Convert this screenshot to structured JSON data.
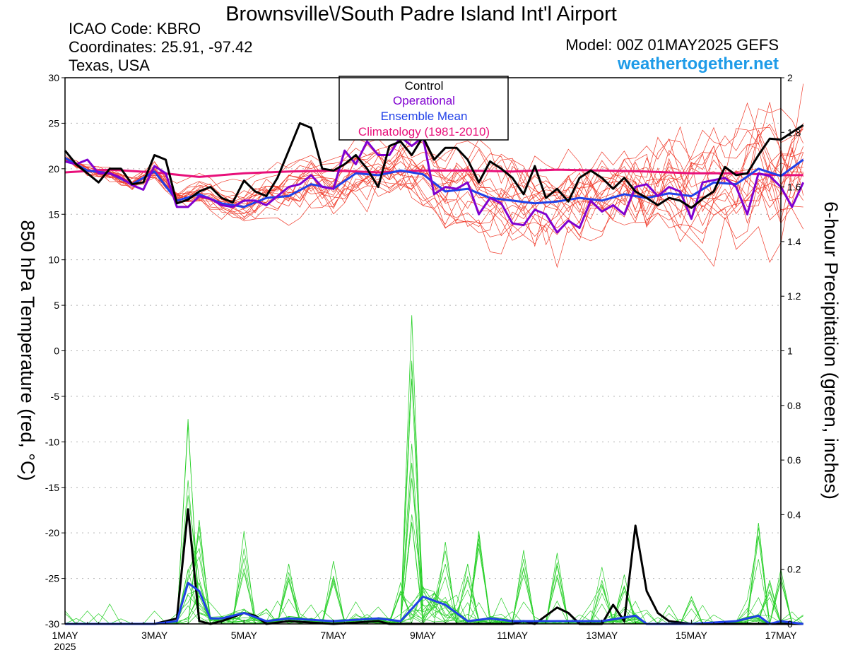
{
  "header": {
    "title": "Brownsville\\/South Padre Island Int'l Airport",
    "icao": "ICAO Code: KBRO",
    "coords": "Coordinates: 25.91, -97.42",
    "region": "Texas, USA",
    "model": "Model: 00Z 01MAY2025 GEFS",
    "site": "weathertogether.net"
  },
  "colors": {
    "control": "#000000",
    "operational": "#8000d0",
    "ensemble_mean": "#2040e8",
    "climatology": "#e8107a",
    "temp_members": "#f03a2a",
    "precip_members": "#2ad02a",
    "site": "#1e9be8"
  },
  "chart_data": {
    "type": "line",
    "ylabel": "850 hPa Temperature (red, °C)",
    "y2label": "6-hour Precipitation (green, inches)",
    "ylim": [
      -30,
      30
    ],
    "y2lim": [
      0,
      2
    ],
    "y_ticks": [
      30,
      25,
      20,
      15,
      10,
      5,
      0,
      -5,
      -10,
      -15,
      -20,
      -25,
      -30
    ],
    "y2_ticks": [
      2,
      1.8,
      1.6,
      1.4,
      1.2,
      1,
      0.8,
      0.6,
      0.4,
      0.2,
      0
    ],
    "xlim": [
      0,
      16
    ],
    "x_unit": "days since 1MAY 00Z",
    "x_ticks": [
      {
        "x": 0,
        "label": "1MAY",
        "sub": "2025"
      },
      {
        "x": 2,
        "label": "3MAY"
      },
      {
        "x": 4,
        "label": "5MAY"
      },
      {
        "x": 6,
        "label": "7MAY"
      },
      {
        "x": 8,
        "label": "9MAY"
      },
      {
        "x": 10,
        "label": "11MAY"
      },
      {
        "x": 12,
        "label": "13MAY"
      },
      {
        "x": 14,
        "label": "15MAY"
      },
      {
        "x": 16,
        "label": "17MAY"
      }
    ],
    "grid": "dotted horizontal",
    "legend": {
      "placement": "top-center",
      "entries": [
        {
          "label": "Control",
          "key": "control"
        },
        {
          "label": "Operational",
          "key": "operational"
        },
        {
          "label": "Ensemble Mean",
          "key": "ensemble_mean"
        },
        {
          "label": "Climatology (1981-2010)",
          "key": "climatology"
        }
      ]
    },
    "temp_control": [
      [
        0,
        22
      ],
      [
        0.25,
        20.5
      ],
      [
        0.5,
        19.5
      ],
      [
        0.75,
        18.5
      ],
      [
        1,
        20
      ],
      [
        1.25,
        20
      ],
      [
        1.5,
        18.3
      ],
      [
        1.75,
        18.5
      ],
      [
        2,
        21.5
      ],
      [
        2.25,
        21
      ],
      [
        2.5,
        16.2
      ],
      [
        2.75,
        16.6
      ],
      [
        3,
        17.5
      ],
      [
        3.25,
        18
      ],
      [
        3.5,
        16.8
      ],
      [
        3.75,
        16.3
      ],
      [
        4,
        18.7
      ],
      [
        4.25,
        17.5
      ],
      [
        4.5,
        17
      ],
      [
        4.75,
        19
      ],
      [
        5,
        22
      ],
      [
        5.25,
        25
      ],
      [
        5.5,
        24.5
      ],
      [
        5.75,
        20
      ],
      [
        6,
        19.8
      ],
      [
        6.25,
        20.5
      ],
      [
        6.5,
        21.5
      ],
      [
        6.75,
        20
      ],
      [
        7,
        18
      ],
      [
        7.25,
        22.5
      ],
      [
        7.5,
        23
      ],
      [
        7.75,
        21.5
      ],
      [
        8,
        23.5
      ],
      [
        8.25,
        21
      ],
      [
        8.5,
        22.3
      ],
      [
        8.75,
        22.3
      ],
      [
        9,
        21
      ],
      [
        9.25,
        18.5
      ],
      [
        9.5,
        20.8
      ],
      [
        9.75,
        20
      ],
      [
        10,
        19
      ],
      [
        10.25,
        17.2
      ],
      [
        10.5,
        20.3
      ],
      [
        10.75,
        16.8
      ],
      [
        11,
        17.8
      ],
      [
        11.25,
        16.4
      ],
      [
        11.5,
        19
      ],
      [
        11.75,
        19.8
      ],
      [
        12,
        19
      ],
      [
        12.25,
        17.8
      ],
      [
        12.5,
        19
      ],
      [
        12.75,
        17.5
      ],
      [
        13,
        16.8
      ],
      [
        13.25,
        16
      ],
      [
        13.5,
        16.8
      ],
      [
        13.75,
        16.5
      ],
      [
        14,
        15.7
      ],
      [
        14.25,
        16.7
      ],
      [
        14.5,
        17.5
      ],
      [
        14.75,
        20.2
      ],
      [
        15,
        19.3
      ],
      [
        15.25,
        19.5
      ],
      [
        15.5,
        21.5
      ],
      [
        15.75,
        23.3
      ],
      [
        16,
        23.2
      ],
      [
        16.25,
        24
      ],
      [
        16.5,
        24.8
      ]
    ],
    "temp_operational": [
      [
        0,
        20.8
      ],
      [
        0.25,
        20.5
      ],
      [
        0.5,
        21
      ],
      [
        0.75,
        19.5
      ],
      [
        1,
        19.5
      ],
      [
        1.25,
        19
      ],
      [
        1.5,
        18.2
      ],
      [
        1.75,
        17.7
      ],
      [
        2,
        20.3
      ],
      [
        2.25,
        19.5
      ],
      [
        2.5,
        15.8
      ],
      [
        2.75,
        15.8
      ],
      [
        3,
        17
      ],
      [
        3.25,
        16.7
      ],
      [
        3.5,
        16
      ],
      [
        3.75,
        15.8
      ],
      [
        4,
        16.5
      ],
      [
        4.25,
        16.5
      ],
      [
        4.5,
        16
      ],
      [
        4.75,
        17
      ],
      [
        5,
        18
      ],
      [
        5.25,
        18.3
      ],
      [
        5.5,
        19.3
      ],
      [
        5.75,
        18
      ],
      [
        6,
        17.8
      ],
      [
        6.25,
        22
      ],
      [
        6.5,
        20.5
      ],
      [
        6.75,
        23
      ],
      [
        7,
        21.5
      ],
      [
        7.25,
        21.5
      ],
      [
        7.5,
        23.5
      ],
      [
        7.75,
        22.5
      ],
      [
        8,
        23.5
      ],
      [
        8.25,
        17.2
      ],
      [
        8.5,
        18
      ],
      [
        8.75,
        17.8
      ],
      [
        9,
        18.5
      ],
      [
        9.25,
        15
      ],
      [
        9.5,
        16.8
      ],
      [
        9.75,
        16.2
      ],
      [
        10,
        14
      ],
      [
        10.25,
        13.8
      ],
      [
        10.5,
        15.5
      ],
      [
        10.75,
        15
      ],
      [
        11,
        13
      ],
      [
        11.25,
        14.3
      ],
      [
        11.5,
        13.5
      ],
      [
        11.75,
        16.5
      ],
      [
        12,
        15.3
      ],
      [
        12.25,
        16
      ],
      [
        12.5,
        15
      ],
      [
        12.75,
        18
      ],
      [
        13,
        18.3
      ],
      [
        13.25,
        17
      ],
      [
        13.5,
        18
      ],
      [
        13.75,
        17.5
      ],
      [
        14,
        14.5
      ],
      [
        14.25,
        18.5
      ],
      [
        14.75,
        19
      ],
      [
        15,
        18
      ],
      [
        15.25,
        15
      ],
      [
        15.5,
        19.5
      ],
      [
        15.75,
        19.2
      ],
      [
        16,
        18
      ],
      [
        16.25,
        15.8
      ],
      [
        16.5,
        18.5
      ]
    ],
    "temp_ensemble_mean": [
      [
        0,
        21.2
      ],
      [
        0.5,
        19.8
      ],
      [
        1,
        19.5
      ],
      [
        1.5,
        18.3
      ],
      [
        2,
        19.7
      ],
      [
        2.5,
        16.5
      ],
      [
        3,
        17.2
      ],
      [
        3.5,
        16.2
      ],
      [
        4,
        15.8
      ],
      [
        4.5,
        16.8
      ],
      [
        5,
        17
      ],
      [
        5.5,
        18.3
      ],
      [
        6,
        17.8
      ],
      [
        6.5,
        19.5
      ],
      [
        7,
        19.3
      ],
      [
        7.5,
        19.8
      ],
      [
        8,
        19.4
      ],
      [
        8.5,
        17.5
      ],
      [
        9,
        17.8
      ],
      [
        9.5,
        16.8
      ],
      [
        10,
        16.5
      ],
      [
        10.5,
        16.2
      ],
      [
        11,
        16.4
      ],
      [
        11.5,
        16.8
      ],
      [
        12,
        16.5
      ],
      [
        12.5,
        17.2
      ],
      [
        13,
        16.8
      ],
      [
        13.5,
        17.3
      ],
      [
        14,
        17
      ],
      [
        14.5,
        18.5
      ],
      [
        15,
        18.3
      ],
      [
        15.5,
        20
      ],
      [
        16,
        19.2
      ],
      [
        16.5,
        21
      ]
    ],
    "temp_climatology": [
      [
        0,
        19.6
      ],
      [
        1,
        19.9
      ],
      [
        2,
        19.6
      ],
      [
        3,
        19.1
      ],
      [
        4,
        19.5
      ],
      [
        5,
        19.7
      ],
      [
        6,
        19.8
      ],
      [
        7,
        19.6
      ],
      [
        8,
        19.8
      ],
      [
        9,
        19.8
      ],
      [
        10,
        19.7
      ],
      [
        11,
        19.9
      ],
      [
        12,
        19.8
      ],
      [
        13,
        19.7
      ],
      [
        14,
        19.5
      ],
      [
        15,
        19.5
      ],
      [
        16,
        19.3
      ],
      [
        16.5,
        19.3
      ]
    ],
    "precip_control": [
      [
        0,
        0
      ],
      [
        1,
        0
      ],
      [
        2,
        0
      ],
      [
        2.5,
        0.02
      ],
      [
        2.75,
        0.42
      ],
      [
        3,
        0.01
      ],
      [
        3.25,
        0
      ],
      [
        3.5,
        0.01
      ],
      [
        4,
        0.04
      ],
      [
        4.25,
        0.03
      ],
      [
        4.5,
        0
      ],
      [
        5,
        0.01
      ],
      [
        6,
        0
      ],
      [
        7,
        0.01
      ],
      [
        7.25,
        0
      ],
      [
        9,
        0
      ],
      [
        10,
        0
      ],
      [
        10.25,
        0.01
      ],
      [
        10.5,
        0
      ],
      [
        10.75,
        0.03
      ],
      [
        11,
        0.06
      ],
      [
        11.25,
        0.04
      ],
      [
        11.5,
        0
      ],
      [
        12,
        0
      ],
      [
        12.25,
        0.07
      ],
      [
        12.5,
        0.01
      ],
      [
        12.75,
        0.36
      ],
      [
        13,
        0.12
      ],
      [
        13.25,
        0.04
      ],
      [
        13.5,
        0.01
      ],
      [
        14,
        0
      ],
      [
        16,
        0
      ],
      [
        16.5,
        0
      ]
    ],
    "precip_ensemble_mean": [
      [
        0,
        0
      ],
      [
        1,
        0
      ],
      [
        2,
        0
      ],
      [
        2.5,
        0.01
      ],
      [
        2.75,
        0.15
      ],
      [
        3,
        0.12
      ],
      [
        3.25,
        0.02
      ],
      [
        3.5,
        0.02
      ],
      [
        4,
        0.04
      ],
      [
        4.5,
        0.01
      ],
      [
        5,
        0.02
      ],
      [
        6,
        0.01
      ],
      [
        7,
        0.02
      ],
      [
        7.5,
        0.01
      ],
      [
        8,
        0.1
      ],
      [
        8.5,
        0.07
      ],
      [
        9,
        0.01
      ],
      [
        9.5,
        0.02
      ],
      [
        10,
        0.01
      ],
      [
        11,
        0.01
      ],
      [
        12,
        0.01
      ],
      [
        12.75,
        0.03
      ],
      [
        13,
        0
      ],
      [
        14,
        0
      ],
      [
        15,
        0.01
      ],
      [
        15.5,
        0.03
      ],
      [
        15.75,
        0
      ],
      [
        16,
        0.01
      ],
      [
        16.5,
        0
      ]
    ],
    "precip_peaks": [
      {
        "x": 2.75,
        "y": 0.75
      },
      {
        "x": 3,
        "y": 0.38
      },
      {
        "x": 4,
        "y": 0.34
      },
      {
        "x": 5,
        "y": 0.22
      },
      {
        "x": 6,
        "y": 0.23
      },
      {
        "x": 7.5,
        "y": 0.15
      },
      {
        "x": 7.75,
        "y": 1.13
      },
      {
        "x": 7.75,
        "y": 0.59
      },
      {
        "x": 8.5,
        "y": 0.3
      },
      {
        "x": 9,
        "y": 0.22
      },
      {
        "x": 9.25,
        "y": 0.34
      },
      {
        "x": 10.25,
        "y": 0.27
      },
      {
        "x": 11,
        "y": 0.26
      },
      {
        "x": 12,
        "y": 0.16
      },
      {
        "x": 12.5,
        "y": 0.18
      },
      {
        "x": 14,
        "y": 0.1
      },
      {
        "x": 15.5,
        "y": 0.37
      },
      {
        "x": 15.75,
        "y": 0.16
      },
      {
        "x": 16,
        "y": 0.2
      }
    ]
  }
}
